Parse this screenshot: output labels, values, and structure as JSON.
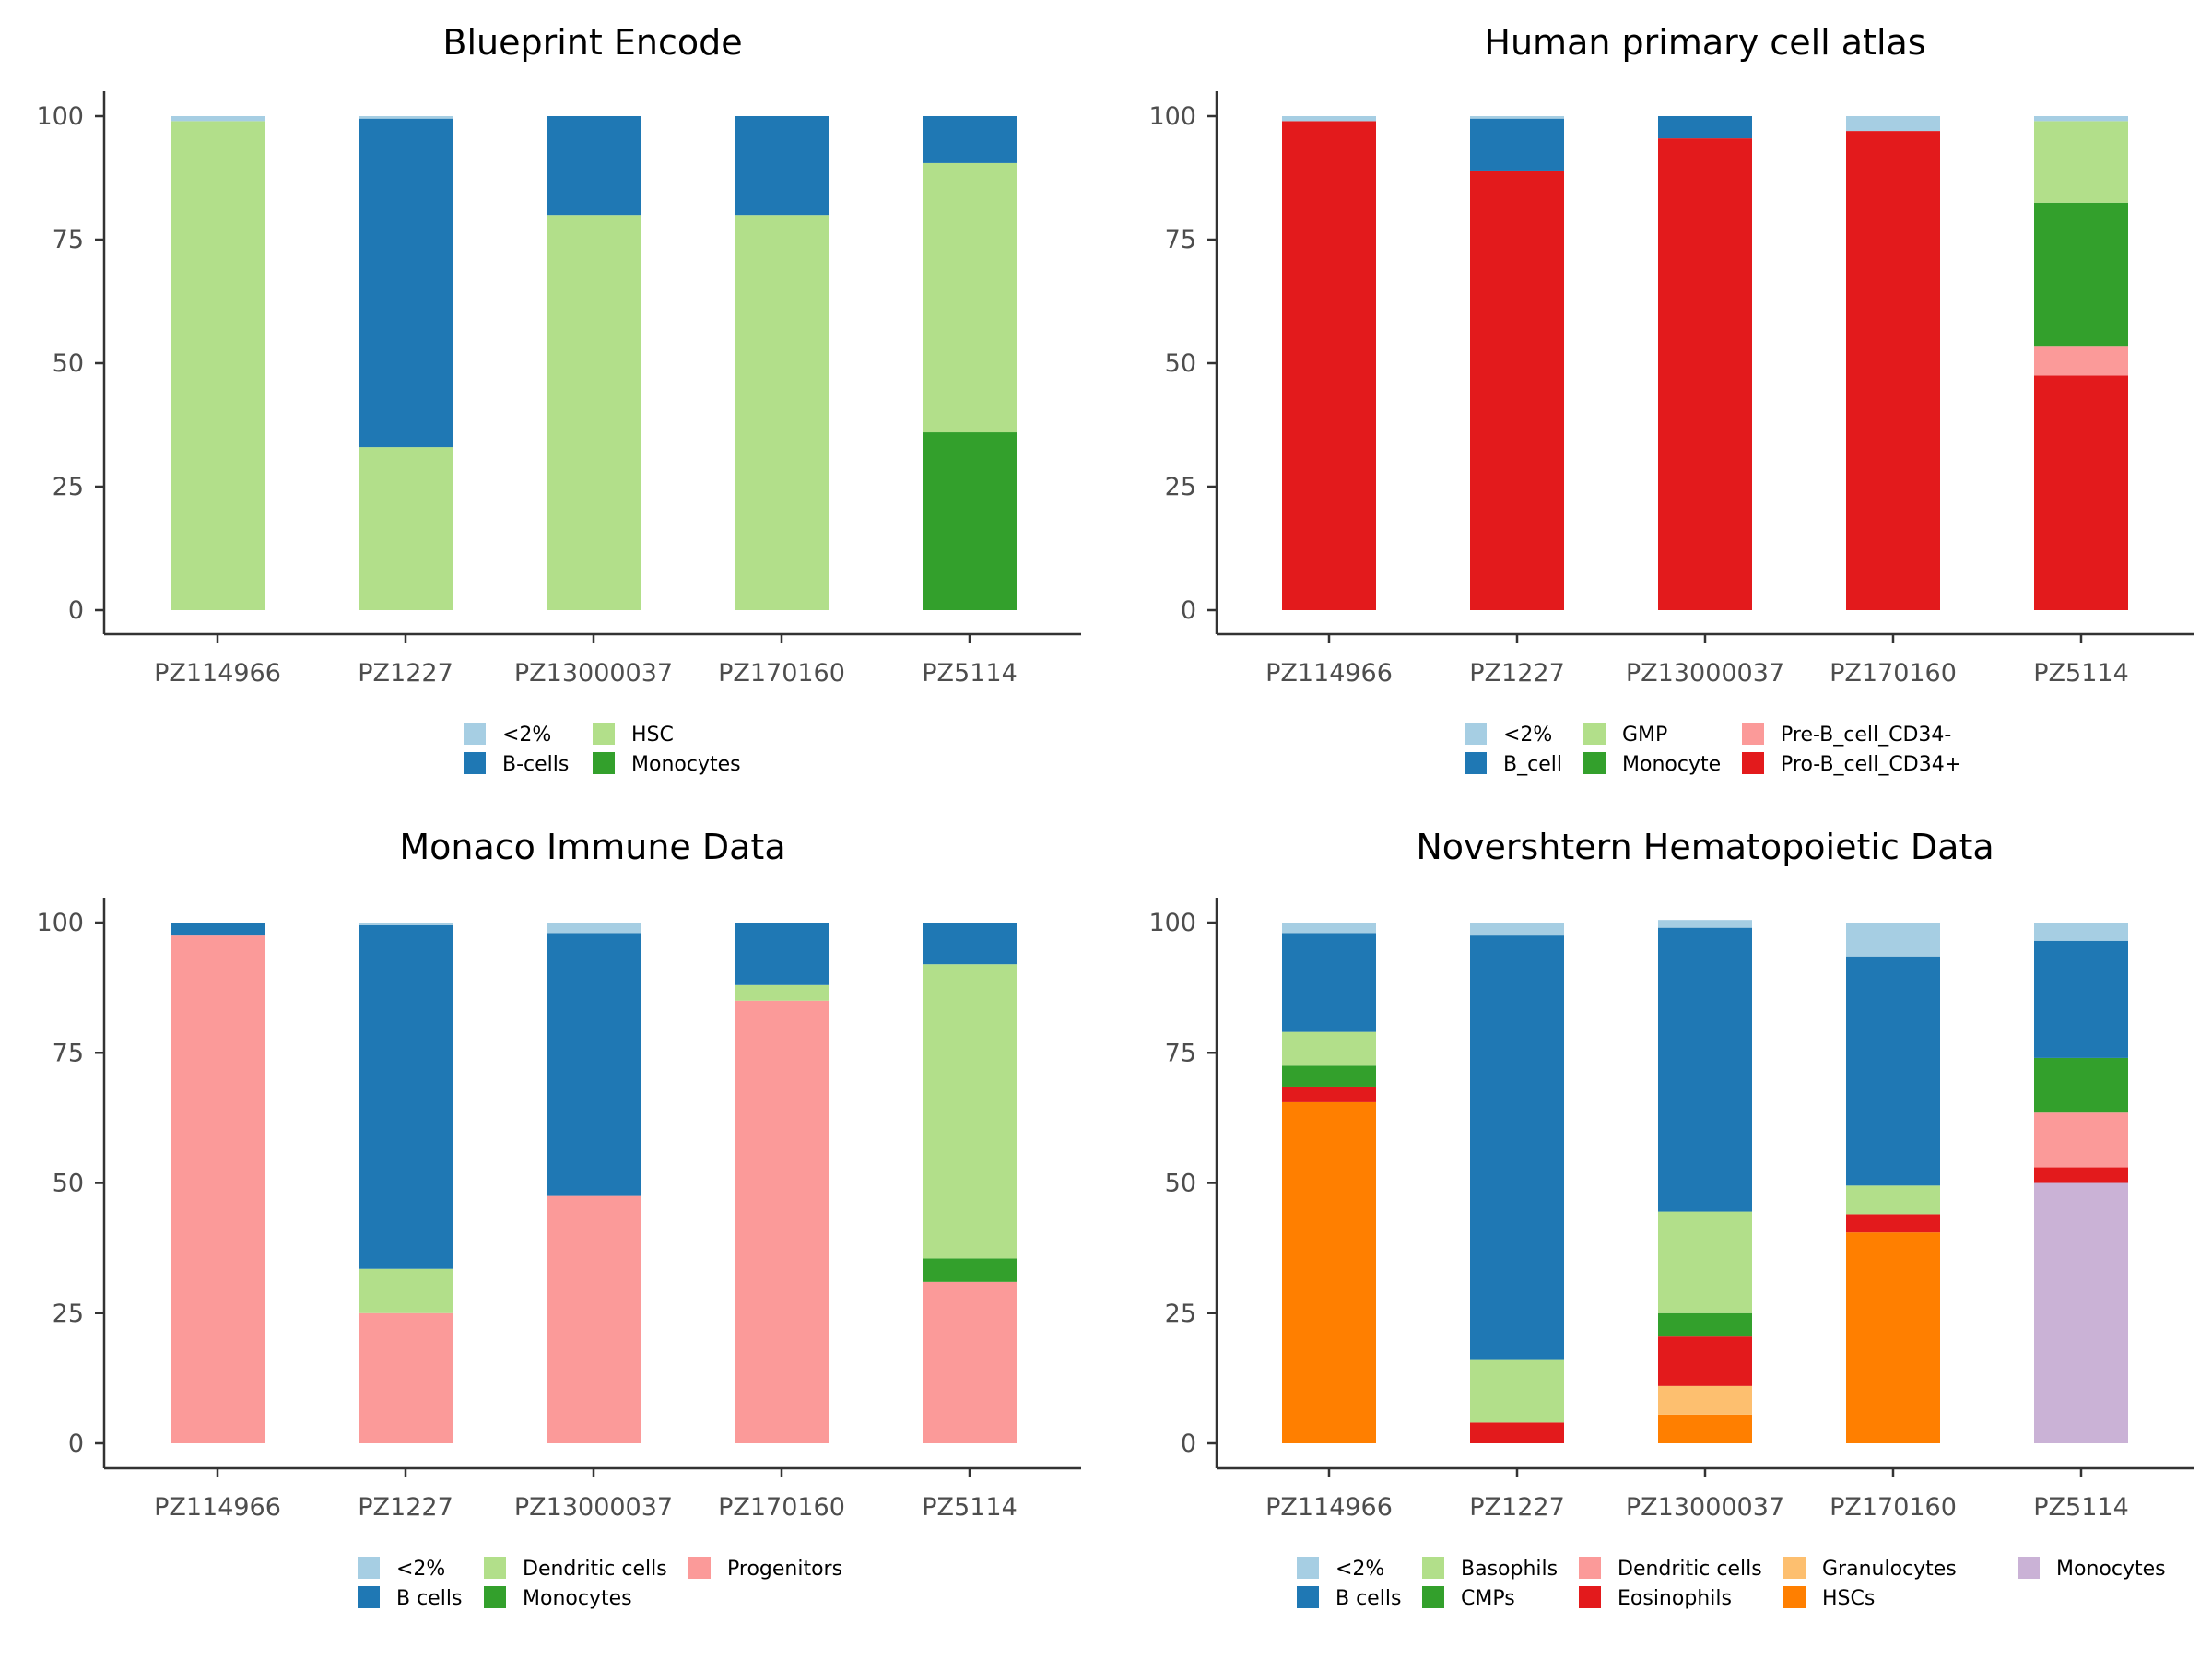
{
  "colors": {
    "<2%": "#a6cee3",
    "B-cells": "#1f78b4",
    "B cells": "#1f78b4",
    "B_cell": "#1f78b4",
    "HSC": "#b2df8a",
    "GMP": "#b2df8a",
    "Dendritic cells": "#b2df8a",
    "Basophils": "#b2df8a",
    "Monocytes": "#33a02c",
    "Monocyte": "#33a02c",
    "CMPs": "#33a02c",
    "Pre-B_cell_CD34-": "#fb9a99",
    "Progenitors": "#fb9a99",
    "Dendritic cells (Novershtern)": "#fb9a99",
    "Pro-B_cell_CD34+": "#e31a1c",
    "Eosinophils": "#e31a1c",
    "Granulocytes": "#fdbf6f",
    "HSCs": "#ff7f00",
    "Monocytes (Novershtern)": "#cab2d6"
  },
  "chart_data": [
    {
      "type": "bar",
      "stacked": true,
      "title": "Blueprint Encode",
      "categories": [
        "PZ114966",
        "PZ1227",
        "PZ13000037",
        "PZ170160",
        "PZ5114"
      ],
      "ylim": [
        0,
        100
      ],
      "yticks": [
        0,
        25,
        50,
        75,
        100
      ],
      "series": [
        {
          "name": "Monocytes",
          "color": "#33a02c",
          "values": [
            0,
            0,
            0,
            0,
            36
          ]
        },
        {
          "name": "HSC",
          "color": "#b2df8a",
          "values": [
            99,
            33,
            80,
            80,
            54.5
          ]
        },
        {
          "name": "B-cells",
          "color": "#1f78b4",
          "values": [
            0,
            66.5,
            20,
            20,
            9.5
          ]
        },
        {
          "name": "<2%",
          "color": "#a6cee3",
          "values": [
            1,
            0.5,
            0,
            0,
            0
          ]
        }
      ],
      "legend": [
        {
          "label": "<2%",
          "color": "#a6cee3"
        },
        {
          "label": "B-cells",
          "color": "#1f78b4"
        },
        {
          "label": "HSC",
          "color": "#b2df8a"
        },
        {
          "label": "Monocytes",
          "color": "#33a02c"
        }
      ],
      "legend_placement": "bottom"
    },
    {
      "type": "bar",
      "stacked": true,
      "title": "Human primary cell atlas",
      "categories": [
        "PZ114966",
        "PZ1227",
        "PZ13000037",
        "PZ170160",
        "PZ5114"
      ],
      "ylim": [
        0,
        100
      ],
      "yticks": [
        0,
        25,
        50,
        75,
        100
      ],
      "series": [
        {
          "name": "Pro-B_cell_CD34+",
          "color": "#e31a1c",
          "values": [
            99,
            89,
            95.5,
            97,
            47.5
          ]
        },
        {
          "name": "Pre-B_cell_CD34-",
          "color": "#fb9a99",
          "values": [
            0,
            0,
            0,
            0,
            6
          ]
        },
        {
          "name": "Monocyte",
          "color": "#33a02c",
          "values": [
            0,
            0,
            0,
            0,
            29
          ]
        },
        {
          "name": "GMP",
          "color": "#b2df8a",
          "values": [
            0,
            0,
            0,
            0,
            16.5
          ]
        },
        {
          "name": "B_cell",
          "color": "#1f78b4",
          "values": [
            0,
            10.5,
            4.5,
            0,
            0
          ]
        },
        {
          "name": "<2%",
          "color": "#a6cee3",
          "values": [
            1,
            0.5,
            0,
            3,
            1
          ]
        }
      ],
      "legend": [
        {
          "label": "<2%",
          "color": "#a6cee3"
        },
        {
          "label": "B_cell",
          "color": "#1f78b4"
        },
        {
          "label": "GMP",
          "color": "#b2df8a"
        },
        {
          "label": "Monocyte",
          "color": "#33a02c"
        },
        {
          "label": "Pre-B_cell_CD34-",
          "color": "#fb9a99"
        },
        {
          "label": "Pro-B_cell_CD34+",
          "color": "#e31a1c"
        }
      ],
      "legend_placement": "bottom"
    },
    {
      "type": "bar",
      "stacked": true,
      "title": "Monaco Immune Data",
      "categories": [
        "PZ114966",
        "PZ1227",
        "PZ13000037",
        "PZ170160",
        "PZ5114"
      ],
      "ylim": [
        0,
        100
      ],
      "yticks": [
        0,
        25,
        50,
        75,
        100
      ],
      "series": [
        {
          "name": "Progenitors",
          "color": "#fb9a99",
          "values": [
            97.5,
            25,
            47.5,
            85,
            31
          ]
        },
        {
          "name": "Monocytes",
          "color": "#33a02c",
          "values": [
            0,
            0,
            0,
            0,
            4.5
          ]
        },
        {
          "name": "Dendritic cells",
          "color": "#b2df8a",
          "values": [
            0,
            8.5,
            0,
            3,
            56.5
          ]
        },
        {
          "name": "B cells",
          "color": "#1f78b4",
          "values": [
            2.5,
            66,
            50.5,
            12,
            8
          ]
        },
        {
          "name": "<2%",
          "color": "#a6cee3",
          "values": [
            0,
            0.5,
            2,
            0,
            0
          ]
        }
      ],
      "legend": [
        {
          "label": "<2%",
          "color": "#a6cee3"
        },
        {
          "label": "B cells",
          "color": "#1f78b4"
        },
        {
          "label": "Dendritic cells",
          "color": "#b2df8a"
        },
        {
          "label": "Monocytes",
          "color": "#33a02c"
        },
        {
          "label": "Progenitors",
          "color": "#fb9a99"
        }
      ],
      "legend_placement": "bottom"
    },
    {
      "type": "bar",
      "stacked": true,
      "title": "Novershtern Hematopoietic Data",
      "categories": [
        "PZ114966",
        "PZ1227",
        "PZ13000037",
        "PZ170160",
        "PZ5114"
      ],
      "ylim": [
        0,
        100
      ],
      "yticks": [
        0,
        25,
        50,
        75,
        100
      ],
      "series": [
        {
          "name": "Monocytes",
          "color": "#cab2d6",
          "values": [
            0,
            0,
            0,
            0,
            50
          ]
        },
        {
          "name": "HSCs",
          "color": "#ff7f00",
          "values": [
            65.5,
            0,
            5.5,
            40.5,
            0
          ]
        },
        {
          "name": "Granulocytes",
          "color": "#fdbf6f",
          "values": [
            0,
            0,
            5.5,
            0,
            0
          ]
        },
        {
          "name": "Eosinophils",
          "color": "#e31a1c",
          "values": [
            3,
            4,
            9.5,
            3.5,
            3
          ]
        },
        {
          "name": "Dendritic cells",
          "color": "#fb9a99",
          "values": [
            0,
            0,
            0,
            0,
            10.5
          ]
        },
        {
          "name": "CMPs",
          "color": "#33a02c",
          "values": [
            4,
            0,
            4.5,
            0,
            10.5
          ]
        },
        {
          "name": "Basophils",
          "color": "#b2df8a",
          "values": [
            6.5,
            12,
            19.5,
            5.5,
            0
          ]
        },
        {
          "name": "B cells",
          "color": "#1f78b4",
          "values": [
            19,
            81.5,
            54.5,
            44,
            22.5
          ]
        },
        {
          "name": "<2%",
          "color": "#a6cee3",
          "values": [
            2,
            2.5,
            1.5,
            6.5,
            3.5
          ]
        }
      ],
      "legend": [
        {
          "label": "<2%",
          "color": "#a6cee3"
        },
        {
          "label": "B cells",
          "color": "#1f78b4"
        },
        {
          "label": "Basophils",
          "color": "#b2df8a"
        },
        {
          "label": "CMPs",
          "color": "#33a02c"
        },
        {
          "label": "Dendritic cells",
          "color": "#fb9a99"
        },
        {
          "label": "Eosinophils",
          "color": "#e31a1c"
        },
        {
          "label": "Granulocytes",
          "color": "#fdbf6f"
        },
        {
          "label": "HSCs",
          "color": "#ff7f00"
        },
        {
          "label": "Monocytes",
          "color": "#cab2d6"
        }
      ],
      "legend_placement": "bottom"
    }
  ]
}
